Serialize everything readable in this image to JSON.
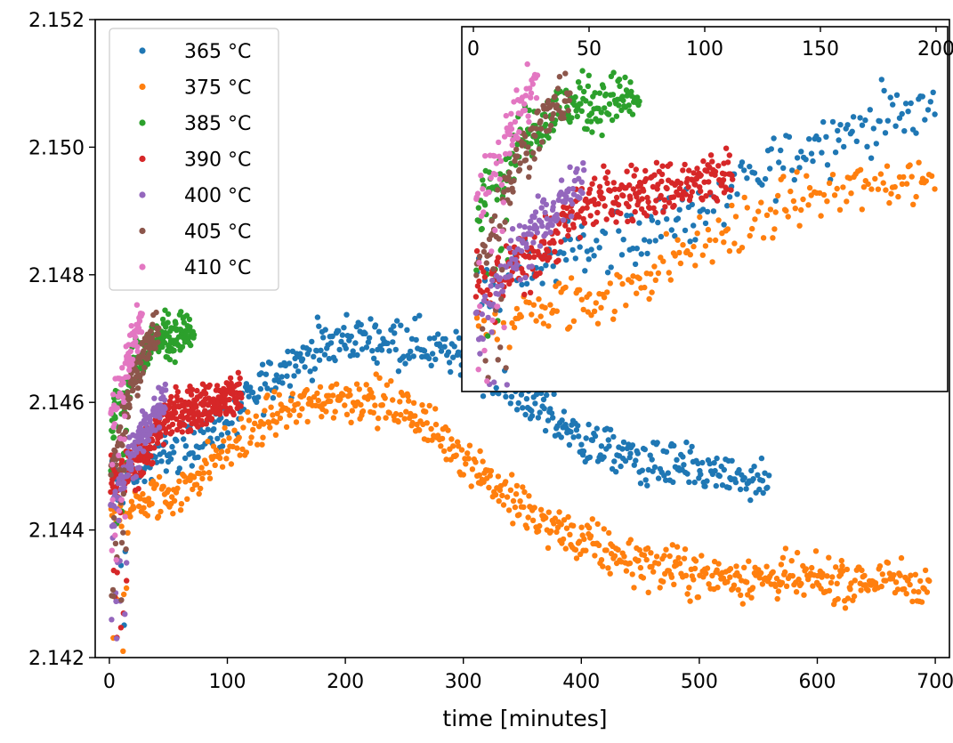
{
  "chart_data": {
    "type": "scatter",
    "title": "",
    "xlabel": "time [minutes]",
    "ylabel": "",
    "xlim": [
      -12,
      712
    ],
    "ylim": [
      2.142,
      2.152
    ],
    "xticks": [
      0,
      100,
      200,
      300,
      400,
      500,
      600,
      700
    ],
    "xtick_labels": [
      "0",
      "100",
      "200",
      "300",
      "400",
      "500",
      "600",
      "700"
    ],
    "yticks": [
      2.142,
      2.144,
      2.146,
      2.148,
      2.15,
      2.152
    ],
    "ytick_labels": [
      "2.142",
      "2.144",
      "2.146",
      "2.148",
      "2.150",
      "2.152"
    ],
    "grid": false,
    "legend_position": "upper-left",
    "series": [
      {
        "name": "365 °C",
        "color": "#1f77b4",
        "t_max": 560,
        "trend_x": [
          0,
          100,
          150,
          200,
          250,
          300,
          350,
          400,
          450,
          500,
          560
        ],
        "trend_y": [
          2.1447,
          2.1457,
          2.1466,
          2.147,
          2.147,
          2.1467,
          2.1461,
          2.1454,
          2.1451,
          2.1449,
          2.1447
        ]
      },
      {
        "name": "375 °C",
        "color": "#ff7f0e",
        "t_max": 695,
        "trend_x": [
          0,
          60,
          100,
          150,
          200,
          250,
          300,
          350,
          400,
          450,
          500,
          600,
          695
        ],
        "trend_y": [
          2.1442,
          2.1446,
          2.1453,
          2.1459,
          2.1461,
          2.1459,
          2.1452,
          2.1443,
          2.1438,
          2.1435,
          2.1433,
          2.1432,
          2.1432
        ]
      },
      {
        "name": "385 °C",
        "color": "#2ca02c",
        "t_max": 72,
        "trend_x": [
          0,
          20,
          40,
          72
        ],
        "trend_y": [
          2.1455,
          2.1466,
          2.147,
          2.1471
        ]
      },
      {
        "name": "390 °C",
        "color": "#d62728",
        "t_max": 112,
        "trend_x": [
          0,
          30,
          50,
          112
        ],
        "trend_y": [
          2.1446,
          2.1452,
          2.1458,
          2.1461
        ]
      },
      {
        "name": "400 °C",
        "color": "#9467bd",
        "t_max": 48,
        "trend_x": [
          0,
          20,
          48
        ],
        "trend_y": [
          2.1442,
          2.1452,
          2.1461
        ]
      },
      {
        "name": "405 °C",
        "color": "#8c564b",
        "t_max": 42,
        "trend_x": [
          0,
          20,
          42
        ],
        "trend_y": [
          2.1448,
          2.1464,
          2.1472
        ]
      },
      {
        "name": "410 °C",
        "color": "#e377c2",
        "t_max": 28,
        "trend_x": [
          0,
          15,
          28
        ],
        "trend_y": [
          2.1456,
          2.1466,
          2.1474
        ]
      }
    ],
    "inset": {
      "xlim": [
        -5,
        205
      ],
      "xticks": [
        0,
        50,
        100,
        150,
        200
      ],
      "xtick_labels": [
        "0",
        "50",
        "100",
        "150",
        "200"
      ],
      "position": "upper-right"
    }
  }
}
